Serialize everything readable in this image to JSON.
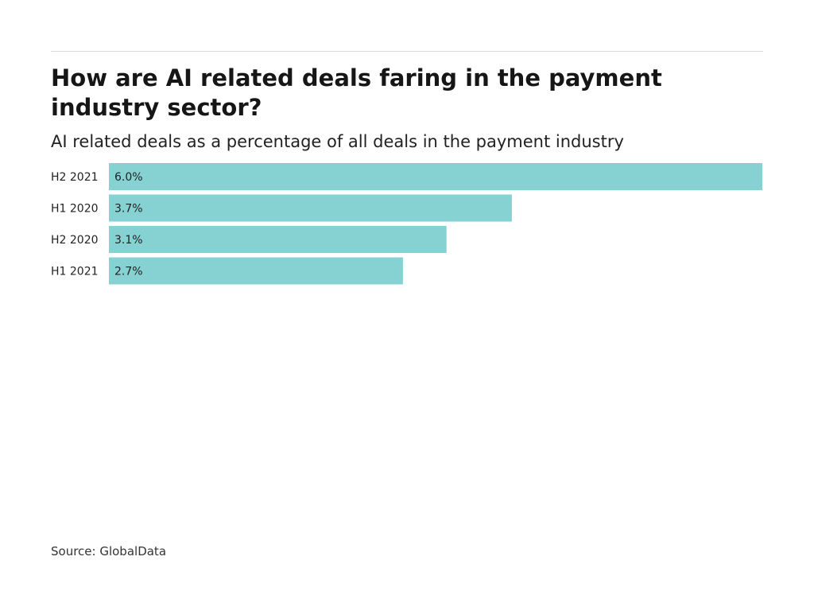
{
  "chart_data": {
    "type": "bar",
    "orientation": "horizontal",
    "title": "How are AI related deals faring in the payment industry sector?",
    "subtitle": "AI related deals as a percentage of all deals in the payment industry",
    "categories": [
      "H2 2021",
      "H1 2020",
      "H2 2020",
      "H1 2021"
    ],
    "values": [
      6.0,
      3.7,
      3.1,
      2.7
    ],
    "value_labels": [
      "6.0%",
      "3.7%",
      "3.1%",
      "2.7%"
    ],
    "xlim": [
      0,
      6.0
    ],
    "grid": false,
    "legend": "none",
    "bar_color": "#86d1d2",
    "source": "Source: GlobalData"
  }
}
